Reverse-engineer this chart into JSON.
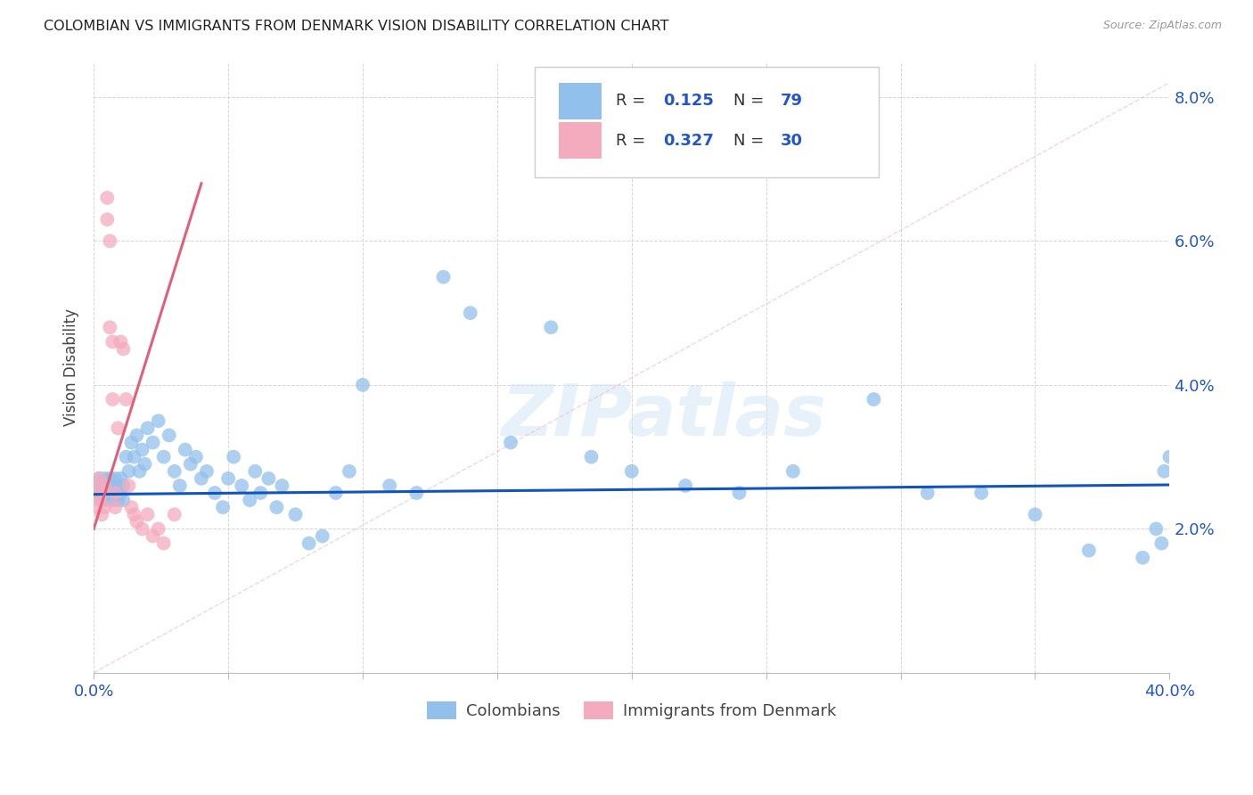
{
  "title": "COLOMBIAN VS IMMIGRANTS FROM DENMARK VISION DISABILITY CORRELATION CHART",
  "source_text": "Source: ZipAtlas.com",
  "ylabel": "Vision Disability",
  "watermark": "ZIPatlas",
  "xlim": [
    0.0,
    0.4
  ],
  "ylim": [
    0.0,
    0.085
  ],
  "colombians_R": "0.125",
  "colombians_N": "79",
  "denmark_R": "0.327",
  "denmark_N": "30",
  "colombians_color": "#92C0EC",
  "denmark_color": "#F4ABBE",
  "regression_blue": "#1155BB",
  "regression_pink": "#E0607A",
  "diag_color": "#F0B8C8",
  "legend_R_color": "#2255CC",
  "legend_N_color": "#2255CC",
  "label_color": "#2255CC",
  "colombians_x": [
    0.001,
    0.002,
    0.002,
    0.003,
    0.003,
    0.004,
    0.004,
    0.005,
    0.005,
    0.006,
    0.006,
    0.007,
    0.007,
    0.008,
    0.008,
    0.009,
    0.009,
    0.01,
    0.01,
    0.011,
    0.011,
    0.012,
    0.013,
    0.014,
    0.015,
    0.016,
    0.017,
    0.018,
    0.019,
    0.02,
    0.022,
    0.024,
    0.026,
    0.028,
    0.03,
    0.032,
    0.034,
    0.036,
    0.038,
    0.04,
    0.042,
    0.045,
    0.048,
    0.05,
    0.052,
    0.055,
    0.058,
    0.06,
    0.062,
    0.065,
    0.068,
    0.07,
    0.075,
    0.08,
    0.085,
    0.09,
    0.095,
    0.1,
    0.11,
    0.12,
    0.13,
    0.14,
    0.155,
    0.17,
    0.185,
    0.2,
    0.22,
    0.24,
    0.26,
    0.29,
    0.31,
    0.33,
    0.35,
    0.37,
    0.39,
    0.395,
    0.397,
    0.398,
    0.4
  ],
  "colombians_y": [
    0.026,
    0.025,
    0.027,
    0.024,
    0.026,
    0.025,
    0.027,
    0.024,
    0.026,
    0.025,
    0.027,
    0.024,
    0.026,
    0.025,
    0.027,
    0.024,
    0.026,
    0.025,
    0.027,
    0.024,
    0.026,
    0.03,
    0.028,
    0.032,
    0.03,
    0.033,
    0.028,
    0.031,
    0.029,
    0.034,
    0.032,
    0.035,
    0.03,
    0.033,
    0.028,
    0.026,
    0.031,
    0.029,
    0.03,
    0.027,
    0.028,
    0.025,
    0.023,
    0.027,
    0.03,
    0.026,
    0.024,
    0.028,
    0.025,
    0.027,
    0.023,
    0.026,
    0.022,
    0.018,
    0.019,
    0.025,
    0.028,
    0.04,
    0.026,
    0.025,
    0.055,
    0.05,
    0.032,
    0.048,
    0.03,
    0.028,
    0.026,
    0.025,
    0.028,
    0.038,
    0.025,
    0.025,
    0.022,
    0.017,
    0.016,
    0.02,
    0.018,
    0.028,
    0.03
  ],
  "denmark_x": [
    0.001,
    0.001,
    0.002,
    0.002,
    0.003,
    0.003,
    0.004,
    0.004,
    0.005,
    0.005,
    0.006,
    0.006,
    0.007,
    0.007,
    0.008,
    0.008,
    0.009,
    0.01,
    0.011,
    0.012,
    0.013,
    0.014,
    0.015,
    0.016,
    0.018,
    0.02,
    0.022,
    0.024,
    0.026,
    0.03
  ],
  "denmark_y": [
    0.023,
    0.026,
    0.024,
    0.027,
    0.022,
    0.025,
    0.023,
    0.026,
    0.066,
    0.063,
    0.06,
    0.048,
    0.046,
    0.038,
    0.025,
    0.023,
    0.034,
    0.046,
    0.045,
    0.038,
    0.026,
    0.023,
    0.022,
    0.021,
    0.02,
    0.022,
    0.019,
    0.02,
    0.018,
    0.022
  ]
}
